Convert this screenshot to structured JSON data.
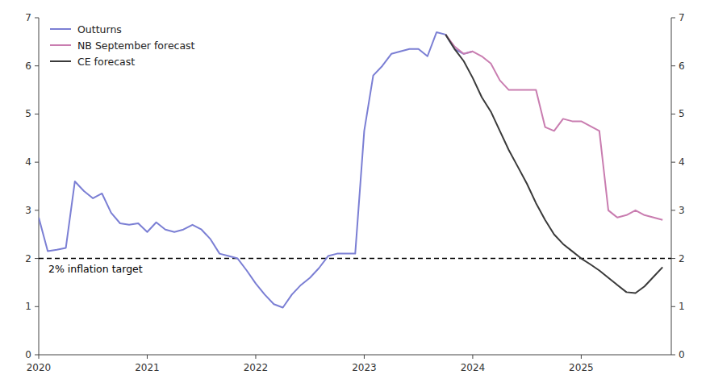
{
  "chart_data": {
    "type": "line",
    "xlim": [
      2020.0,
      2025.83
    ],
    "xticks": [
      2020,
      2021,
      2022,
      2023,
      2024,
      2025
    ],
    "ylim": [
      0,
      7
    ],
    "yticks": [
      0,
      1,
      2,
      3,
      4,
      5,
      6,
      7
    ],
    "y2lim": [
      0,
      7
    ],
    "y2ticks": [
      0,
      1,
      2,
      3,
      4,
      5,
      6,
      7
    ],
    "grid": false,
    "legend": "upper left",
    "series": [
      {
        "name": "Outturns",
        "color": "#7B7FD4",
        "x": [
          2020.0,
          2020.083,
          2020.167,
          2020.25,
          2020.333,
          2020.417,
          2020.5,
          2020.583,
          2020.667,
          2020.75,
          2020.833,
          2020.917,
          2021.0,
          2021.083,
          2021.167,
          2021.25,
          2021.333,
          2021.417,
          2021.5,
          2021.583,
          2021.667,
          2021.75,
          2021.833,
          2021.917,
          2022.0,
          2022.083,
          2022.167,
          2022.25,
          2022.333,
          2022.417,
          2022.5,
          2022.583,
          2022.667,
          2022.75,
          2022.833,
          2022.917,
          2023.0,
          2023.083,
          2023.167,
          2023.25,
          2023.333,
          2023.417,
          2023.5,
          2023.583,
          2023.667,
          2023.75,
          2023.833,
          2023.917,
          2024.0
        ],
        "values": [
          2.85,
          2.15,
          2.18,
          2.22,
          3.6,
          3.4,
          3.25,
          3.35,
          2.95,
          2.73,
          2.7,
          2.73,
          2.55,
          2.75,
          2.6,
          2.55,
          2.6,
          2.7,
          2.6,
          2.4,
          2.1,
          2.05,
          2.0,
          1.75,
          1.48,
          1.25,
          1.05,
          0.98,
          1.25,
          1.45,
          1.6,
          1.8,
          2.05,
          2.1,
          2.1,
          2.1,
          4.65,
          5.8,
          6.0,
          6.25,
          6.3,
          6.35,
          6.35,
          6.2,
          6.7,
          6.65,
          6.35,
          6.25,
          6.3
        ]
      },
      {
        "name": "NB September forecast",
        "color": "#C97DB0",
        "x": [
          2023.75,
          2023.833,
          2023.917,
          2024.0,
          2024.083,
          2024.167,
          2024.25,
          2024.333,
          2024.417,
          2024.5,
          2024.583,
          2024.667,
          2024.75,
          2024.833,
          2024.917,
          2025.0,
          2025.083,
          2025.167,
          2025.25,
          2025.333,
          2025.417,
          2025.5,
          2025.583,
          2025.667,
          2025.75
        ],
        "values": [
          6.65,
          6.4,
          6.25,
          6.3,
          6.2,
          6.05,
          5.7,
          5.5,
          5.5,
          5.5,
          5.5,
          4.73,
          4.65,
          4.9,
          4.85,
          4.85,
          4.75,
          4.65,
          3.0,
          2.85,
          2.9,
          3.0,
          2.9,
          2.85,
          2.8
        ]
      },
      {
        "name": "CE forecast",
        "color": "#3A3A3A",
        "x": [
          2023.75,
          2023.833,
          2023.917,
          2024.0,
          2024.083,
          2024.167,
          2024.25,
          2024.333,
          2024.417,
          2024.5,
          2024.583,
          2024.667,
          2024.75,
          2024.833,
          2024.917,
          2025.0,
          2025.083,
          2025.167,
          2025.25,
          2025.333,
          2025.417,
          2025.5,
          2025.583,
          2025.667,
          2025.75
        ],
        "values": [
          6.65,
          6.35,
          6.1,
          5.75,
          5.35,
          5.05,
          4.65,
          4.25,
          3.9,
          3.55,
          3.15,
          2.8,
          2.5,
          2.3,
          2.15,
          2.0,
          1.88,
          1.75,
          1.6,
          1.45,
          1.3,
          1.28,
          1.42,
          1.62,
          1.82
        ]
      }
    ],
    "reference_lines": [
      {
        "value": 2.0,
        "label": "2% inflation target",
        "color": "#000000",
        "line_style": "dashed"
      }
    ]
  }
}
